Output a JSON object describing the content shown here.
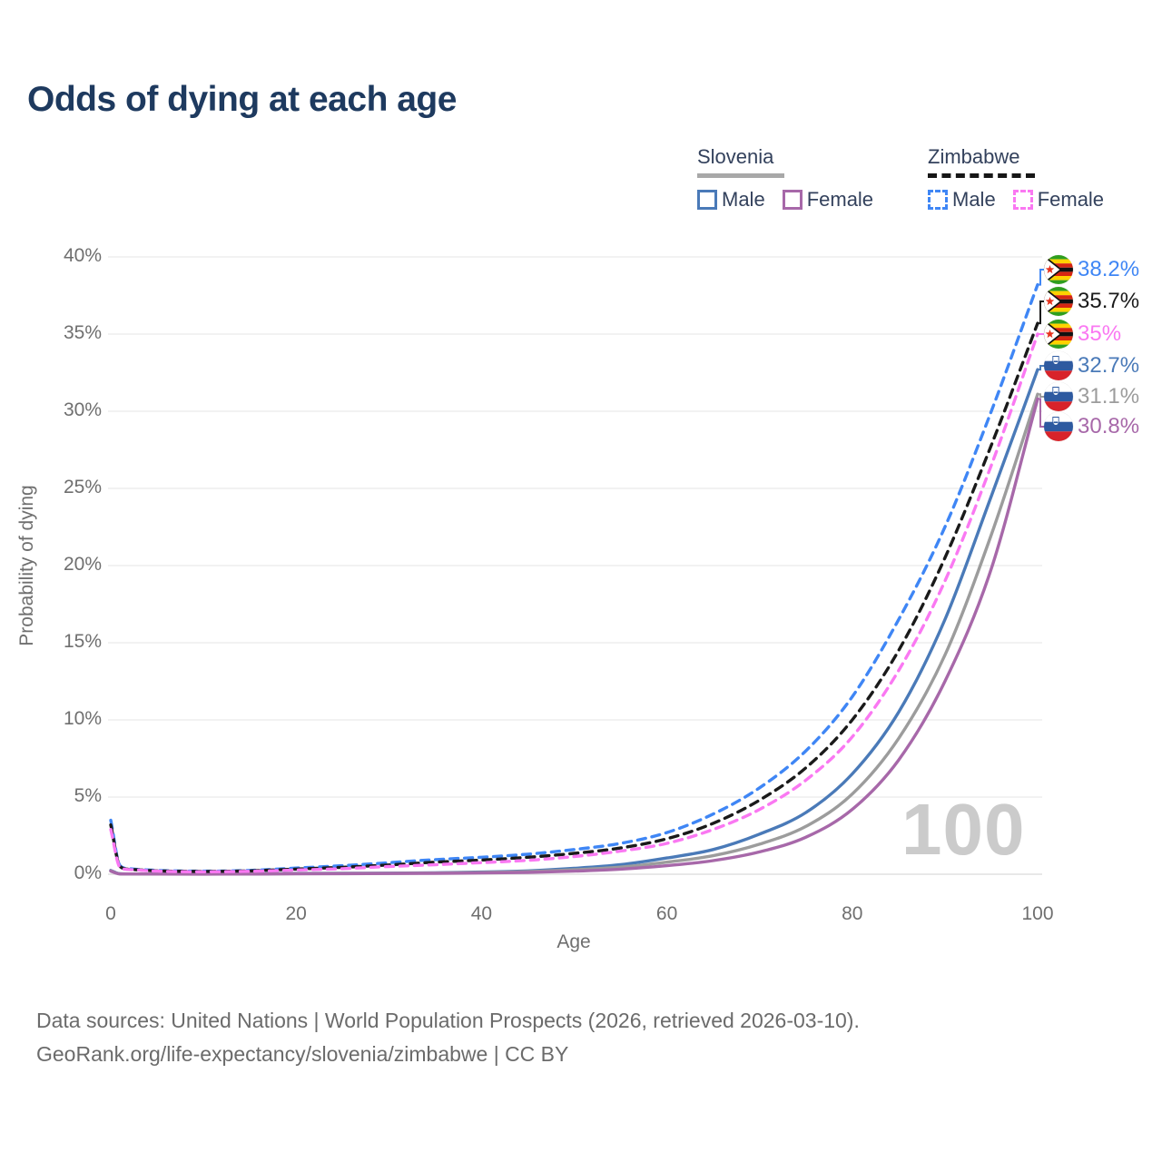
{
  "title": "Odds of dying at each age",
  "watermark": "100",
  "legend": {
    "groups": [
      {
        "name": "Slovenia",
        "line_style": "solid",
        "underline_color": "#a8a8a8",
        "items": [
          {
            "label": "Male",
            "color": "#4a7ab8"
          },
          {
            "label": "Female",
            "color": "#a768a9"
          }
        ]
      },
      {
        "name": "Zimbabwe",
        "line_style": "dashed",
        "underline_color": "#161616",
        "items": [
          {
            "label": "Male",
            "color": "#3f86f5"
          },
          {
            "label": "Female",
            "color": "#fa78f2"
          }
        ]
      }
    ]
  },
  "footer": {
    "line1": "Data sources: United Nations | World Population Prospects (2026, retrieved 2026-03-10).",
    "line2": "GeoRank.org/life-expectancy/slovenia/zimbabwe | CC BY"
  },
  "chart_data": {
    "type": "line",
    "title": "Odds of dying at each age",
    "xlabel": "Age",
    "ylabel": "Probability of dying",
    "xlim": [
      0,
      100
    ],
    "ylim": [
      0,
      40
    ],
    "x_ticks": [
      0,
      20,
      40,
      60,
      80,
      100
    ],
    "y_ticks": [
      {
        "value": 0,
        "label": "0%"
      },
      {
        "value": 5,
        "label": "5%"
      },
      {
        "value": 10,
        "label": "10%"
      },
      {
        "value": 15,
        "label": "15%"
      },
      {
        "value": 20,
        "label": "20%"
      },
      {
        "value": 25,
        "label": "25%"
      },
      {
        "value": 30,
        "label": "30%"
      },
      {
        "value": 35,
        "label": "35%"
      },
      {
        "value": 40,
        "label": "40%"
      }
    ],
    "grid": true,
    "legend_position": "top-right",
    "x": [
      0,
      1,
      2,
      5,
      10,
      15,
      20,
      25,
      30,
      35,
      40,
      45,
      50,
      55,
      60,
      65,
      70,
      75,
      80,
      85,
      90,
      95,
      100
    ],
    "series": [
      {
        "name": "Zimbabwe Male",
        "country": "Zimbabwe",
        "sex": "Male",
        "color": "#3f86f5",
        "dashed": true,
        "flag": "zw",
        "end_label": "38.2%",
        "end_value": 38.2,
        "values": [
          3.5,
          0.55,
          0.35,
          0.25,
          0.2,
          0.25,
          0.4,
          0.55,
          0.75,
          0.95,
          1.1,
          1.3,
          1.6,
          2.0,
          2.7,
          3.9,
          5.6,
          8.0,
          11.5,
          16.5,
          22.5,
          30.0,
          38.2
        ]
      },
      {
        "name": "Zimbabwe Both sexes",
        "country": "Zimbabwe",
        "sex": "Both",
        "color": "#1a1a1a",
        "dashed": true,
        "flag": "zw",
        "end_label": "35.7%",
        "end_value": 35.7,
        "values": [
          3.2,
          0.5,
          0.32,
          0.22,
          0.18,
          0.22,
          0.33,
          0.45,
          0.6,
          0.78,
          0.92,
          1.1,
          1.35,
          1.7,
          2.3,
          3.3,
          4.8,
          6.9,
          10.0,
          14.5,
          20.5,
          27.8,
          35.7
        ]
      },
      {
        "name": "Zimbabwe Female",
        "country": "Zimbabwe",
        "sex": "Female",
        "color": "#fa78f2",
        "dashed": true,
        "flag": "zw",
        "end_label": "35%",
        "end_value": 35.0,
        "values": [
          2.9,
          0.45,
          0.3,
          0.2,
          0.16,
          0.19,
          0.27,
          0.36,
          0.5,
          0.62,
          0.75,
          0.9,
          1.15,
          1.5,
          2.0,
          2.9,
          4.2,
          6.1,
          8.9,
          13.2,
          19.0,
          26.5,
          35.0
        ]
      },
      {
        "name": "Slovenia Male",
        "country": "Slovenia",
        "sex": "Male",
        "color": "#4a7ab8",
        "dashed": false,
        "flag": "si",
        "end_label": "32.7%",
        "end_value": 32.7,
        "values": [
          0.25,
          0.03,
          0.02,
          0.015,
          0.012,
          0.02,
          0.05,
          0.06,
          0.07,
          0.09,
          0.14,
          0.22,
          0.38,
          0.62,
          1.05,
          1.6,
          2.6,
          4.0,
          6.5,
          10.5,
          16.5,
          24.5,
          32.7
        ]
      },
      {
        "name": "Slovenia Both sexes",
        "country": "Slovenia",
        "sex": "Both",
        "color": "#9c9c9c",
        "dashed": false,
        "flag": "si",
        "end_label": "31.1%",
        "end_value": 31.1,
        "values": [
          0.22,
          0.025,
          0.018,
          0.012,
          0.01,
          0.017,
          0.04,
          0.05,
          0.06,
          0.075,
          0.11,
          0.17,
          0.29,
          0.46,
          0.78,
          1.2,
          1.95,
          3.1,
          5.2,
          8.8,
          14.2,
          22.0,
          31.1
        ]
      },
      {
        "name": "Slovenia Female",
        "country": "Slovenia",
        "sex": "Female",
        "color": "#a768a9",
        "dashed": false,
        "flag": "si",
        "end_label": "30.8%",
        "end_value": 30.8,
        "values": [
          0.2,
          0.02,
          0.015,
          0.01,
          0.008,
          0.013,
          0.028,
          0.033,
          0.045,
          0.06,
          0.08,
          0.12,
          0.2,
          0.33,
          0.55,
          0.88,
          1.45,
          2.4,
          4.2,
          7.4,
          12.5,
          19.8,
          30.8
        ]
      }
    ]
  }
}
